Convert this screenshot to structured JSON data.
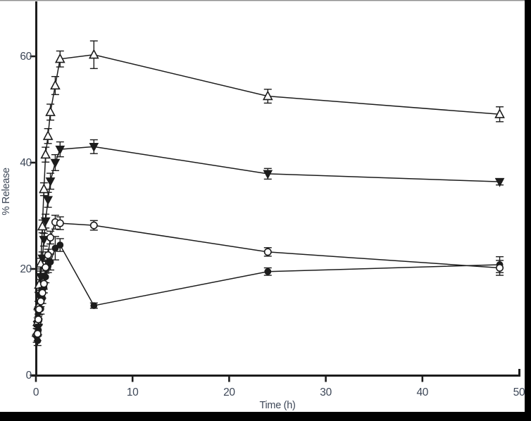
{
  "figure": {
    "title": "",
    "frame_color": "#000000",
    "axis_color": "#1c1c1c",
    "label_color": "#3d4757",
    "background": "#ffffff"
  },
  "chart_data": {
    "type": "line",
    "title": "",
    "xlabel": "Time (h)",
    "ylabel": "% Release",
    "xlim": [
      0,
      50
    ],
    "ylim": [
      0,
      70
    ],
    "x_ticks": [
      0,
      10,
      20,
      30,
      40,
      50
    ],
    "y_ticks": [
      0,
      20,
      40,
      60
    ],
    "grid": false,
    "legend": "none",
    "error_bars": true,
    "series": [
      {
        "name": "filled-inverted-triangle",
        "marker": "triangle-down-filled",
        "color": "#1c1c1c",
        "x": [
          0.08,
          0.17,
          0.25,
          0.33,
          0.5,
          0.67,
          0.83,
          1,
          1.25,
          1.5,
          2,
          2.5,
          6,
          24,
          48
        ],
        "y": [
          7,
          9.5,
          12,
          15,
          18.5,
          22,
          25.5,
          29,
          33,
          36.5,
          40,
          42.5,
          43,
          37.9,
          36.4
        ],
        "err": [
          0.8,
          0.8,
          0.9,
          1,
          1.1,
          1.2,
          1.2,
          1.3,
          1.4,
          1.5,
          1.5,
          1.4,
          1.3,
          1,
          0.6
        ]
      },
      {
        "name": "open-triangle",
        "marker": "triangle-up-open",
        "color": "#1c1c1c",
        "x": [
          0.08,
          0.17,
          0.25,
          0.33,
          0.5,
          0.67,
          0.83,
          1,
          1.25,
          1.5,
          2,
          2.5,
          6,
          24,
          48
        ],
        "y": [
          8,
          10,
          13,
          17,
          21,
          28,
          35,
          41.5,
          45,
          49.5,
          54.5,
          59.5,
          60.3,
          52.5,
          49.1
        ],
        "err": [
          0.8,
          0.8,
          0.9,
          1,
          1,
          1.2,
          1.2,
          1.4,
          1.4,
          1.5,
          1.7,
          1.5,
          2.6,
          1.3,
          1.4
        ]
      },
      {
        "name": "filled-circle",
        "marker": "circle-filled",
        "color": "#1c1c1c",
        "x": [
          0.17,
          0.25,
          0.33,
          0.5,
          0.67,
          0.83,
          1,
          1.25,
          1.5,
          2,
          2.5,
          6,
          24,
          48
        ],
        "y": [
          6.5,
          8.5,
          10.5,
          12.5,
          14.5,
          16.5,
          18.5,
          20.5,
          21.3,
          23.9,
          24.5,
          13.1,
          19.5,
          20.8
        ],
        "err": [
          0.9,
          0.9,
          0.9,
          1,
          1,
          1,
          1.1,
          1.2,
          1.5,
          2.2,
          1.2,
          0.5,
          0.7,
          1.5
        ]
      },
      {
        "name": "open-circle",
        "marker": "circle-open",
        "color": "#1c1c1c",
        "x": [
          0.17,
          0.25,
          0.33,
          0.5,
          0.67,
          0.83,
          1,
          1.25,
          1.5,
          2,
          2.5,
          6,
          24,
          48
        ],
        "y": [
          7.8,
          10.5,
          12.4,
          13.9,
          15.5,
          17.2,
          20.3,
          22.6,
          25.9,
          28.8,
          28.6,
          28.2,
          23.2,
          20.2
        ],
        "err": [
          1.3,
          1,
          1,
          1,
          1,
          1,
          1.1,
          1.1,
          1.2,
          1.3,
          1.2,
          0.9,
          0.8,
          1.4
        ]
      }
    ]
  }
}
